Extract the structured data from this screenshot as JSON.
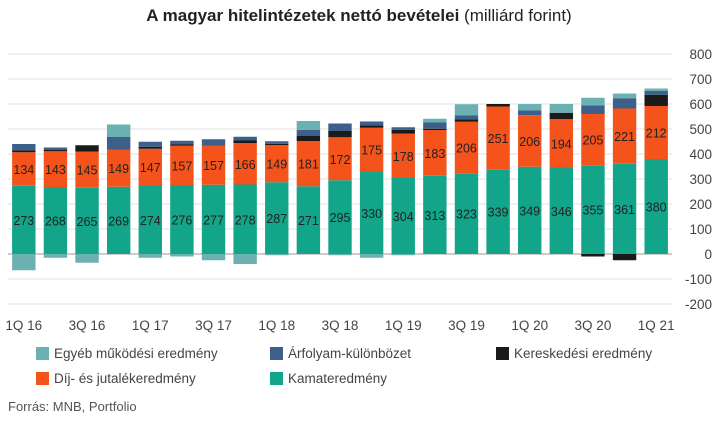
{
  "title_bold": "A magyar hitelintézetek nettó bevételei",
  "title_normal": "(milliárd forint)",
  "source": "Forrás: MNB, Portfolio",
  "chart_data": {
    "type": "bar",
    "stacked": true,
    "categories": [
      "1Q 16",
      "2Q 16",
      "3Q 16",
      "4Q 16",
      "1Q 17",
      "2Q 17",
      "3Q 17",
      "4Q 17",
      "1Q 18",
      "2Q 18",
      "3Q 18",
      "4Q 18",
      "1Q 19",
      "2Q 19",
      "3Q 19",
      "4Q 19",
      "1Q 20",
      "2Q 20",
      "3Q 20",
      "4Q 20",
      "1Q 21"
    ],
    "x_tick_labels": [
      "1Q 16",
      "3Q 16",
      "1Q 17",
      "3Q 17",
      "1Q 18",
      "3Q 18",
      "1Q 19",
      "3Q 19",
      "1Q 20",
      "3Q 20",
      "1Q 21"
    ],
    "ylim": [
      -200,
      800
    ],
    "yticks": [
      -200,
      -100,
      0,
      100,
      200,
      300,
      400,
      500,
      600,
      700,
      800
    ],
    "y_axis_position": "right",
    "grid": true,
    "series": [
      {
        "name": "Kamateredmény",
        "color": "#12a58a",
        "labeled": true,
        "values": [
          273,
          268,
          265,
          269,
          274,
          276,
          277,
          278,
          287,
          271,
          295,
          330,
          304,
          313,
          323,
          339,
          349,
          346,
          355,
          361,
          380
        ]
      },
      {
        "name": "Díj- és jutalékeredmény",
        "color": "#f4541b",
        "labeled": true,
        "values": [
          134,
          143,
          145,
          149,
          147,
          157,
          157,
          166,
          149,
          181,
          172,
          175,
          178,
          183,
          206,
          251,
          206,
          194,
          205,
          221,
          212
        ]
      },
      {
        "name": "Kereskedési eredmény",
        "color": "#1a1a1a",
        "labeled": false,
        "values": [
          8,
          5,
          25,
          0,
          8,
          5,
          0,
          10,
          5,
          20,
          25,
          10,
          15,
          5,
          10,
          10,
          0,
          25,
          -10,
          -25,
          45
        ]
      },
      {
        "name": "Árfolyam-különbözet",
        "color": "#3d5f8a",
        "labeled": false,
        "values": [
          25,
          10,
          0,
          50,
          20,
          15,
          25,
          15,
          10,
          25,
          30,
          15,
          10,
          25,
          15,
          0,
          20,
          0,
          35,
          40,
          15
        ]
      },
      {
        "name": "Egyéb működési eredmény",
        "color": "#6bb1b1",
        "labeled": false,
        "values": [
          -65,
          -15,
          -35,
          50,
          -15,
          -10,
          -25,
          -40,
          -5,
          35,
          -5,
          -15,
          -5,
          15,
          45,
          0,
          25,
          35,
          30,
          20,
          10
        ]
      }
    ],
    "legend": [
      {
        "label": "Egyéb működési eredmény",
        "color": "#6bb1b1"
      },
      {
        "label": "Árfolyam-különbözet",
        "color": "#3d5f8a"
      },
      {
        "label": "Kereskedési eredmény",
        "color": "#1a1a1a"
      },
      {
        "label": "Díj- és jutalékeredmény",
        "color": "#f4541b"
      },
      {
        "label": "Kamateredmény",
        "color": "#12a58a"
      }
    ],
    "legend_position": "bottom"
  }
}
